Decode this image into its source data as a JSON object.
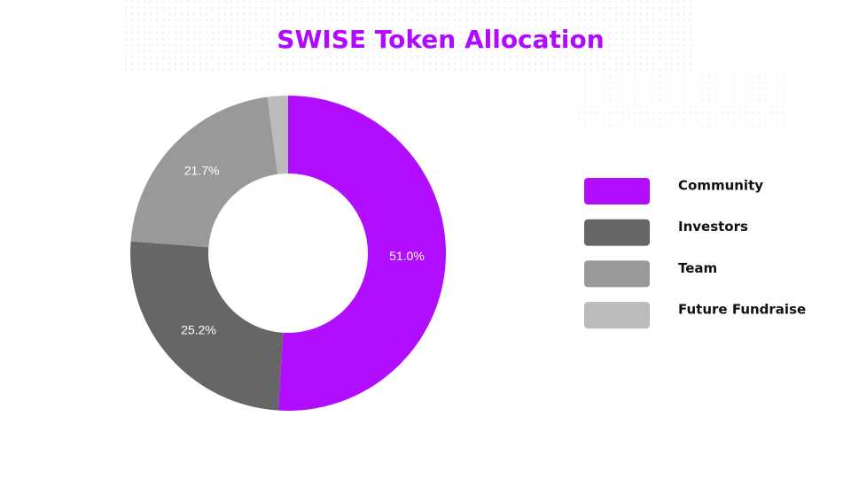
{
  "chart_data": {
    "type": "donut",
    "title": "SWISE Token Allocation",
    "categories": [
      "Community",
      "Investors",
      "Team",
      "Future Fundraise"
    ],
    "values": [
      51.0,
      25.2,
      21.7,
      2.1
    ],
    "value_labels": [
      "51.0%",
      "25.2%",
      "21.7%",
      null
    ],
    "colors": [
      "#b10dfe",
      "#666666",
      "#999999",
      "#bbbbbb"
    ],
    "legend": "right"
  }
}
